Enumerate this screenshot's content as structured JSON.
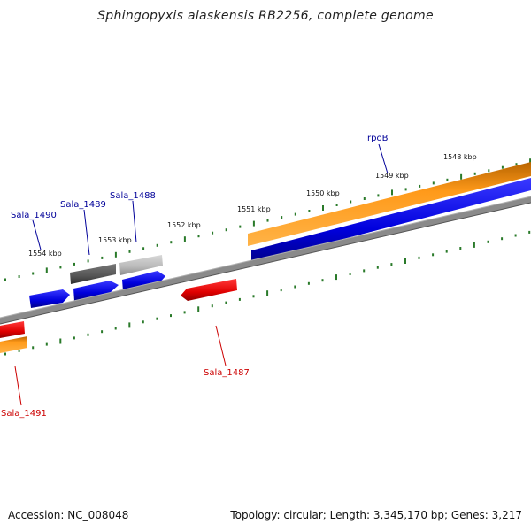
{
  "header": {
    "title": "Sphingopyxis alaskensis RB2256, complete genome"
  },
  "footer": {
    "accession": "Accession: NC_008048",
    "summary": "Topology: circular; Length: 3,345,170 bp; Genes: 3,217"
  },
  "scale": {
    "ticks": [
      "1554 kbp",
      "1553 kbp",
      "1552 kbp",
      "1551 kbp",
      "1550 kbp",
      "1549 kbp",
      "1548 kbp"
    ]
  },
  "genes": {
    "sala_1490": "Sala_1490",
    "sala_1489": "Sala_1489",
    "sala_1488": "Sala_1488",
    "rpob": "rpoB",
    "sala_1487": "Sala_1487",
    "sala_1491": "Sala_1491"
  },
  "colors": {
    "forward_cds": "#0000dd",
    "reverse_cds": "#dd0000",
    "gene_forward": "#ff8c00",
    "gene_reverse": "#ff8c00",
    "dark_gray_feature": "#555555",
    "light_gray_feature": "#b8b8b8",
    "backbone": "#808080",
    "tick": "#2a7a2a",
    "label_forward": "#000099",
    "label_reverse": "#cc0000"
  }
}
